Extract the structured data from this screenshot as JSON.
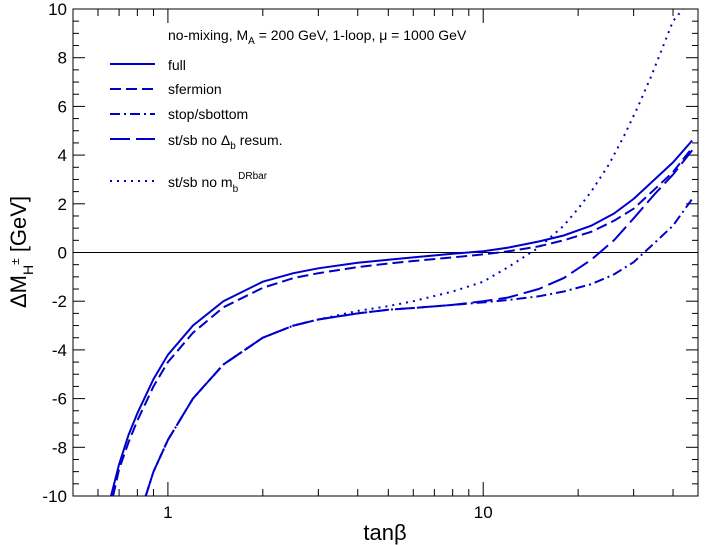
{
  "chart_data": {
    "type": "line",
    "xscale": "log",
    "xlim": [
      0.5,
      48
    ],
    "ylim": [
      -10,
      10
    ],
    "x_tick_labels": [
      "1",
      "10"
    ],
    "y_tick_labels": [
      "-10",
      "-8",
      "-6",
      "-4",
      "-2",
      "0",
      "2",
      "4",
      "6",
      "8",
      "10"
    ],
    "x_ticks": [
      1,
      10
    ],
    "y_ticks": [
      -10,
      -8,
      -6,
      -4,
      -2,
      0,
      2,
      4,
      6,
      8,
      10
    ],
    "xlabel": "tanβ",
    "ylabel": {
      "base": "ΔM",
      "sub": "H",
      "sup": "±",
      "unit": " [GeV]"
    },
    "zero_line": true,
    "legend": {
      "title": {
        "part1": "no-mixing, M",
        "sub": "A",
        "part2": " = 200 GeV, 1-loop, μ = 1000 GeV"
      },
      "entries": [
        {
          "label": "full"
        },
        {
          "label": "sfermion"
        },
        {
          "label": "stop/sbottom"
        },
        {
          "part1": "st/sb no Δ",
          "sub": "b",
          "part2": " resum."
        },
        {
          "part1": "st/sb no m",
          "sub": "b",
          "sup": "DRbar"
        }
      ]
    },
    "series": [
      {
        "key": "full",
        "color": "#0000cc",
        "x": [
          0.66,
          0.7,
          0.75,
          0.8,
          0.9,
          1.0,
          1.2,
          1.5,
          2.0,
          2.5,
          3.0,
          4.0,
          5.0,
          6.0,
          8.0,
          10.0,
          12.0,
          15.0,
          18.0,
          22.0,
          26.0,
          30.0,
          35.0,
          40.0,
          46.0
        ],
        "y": [
          -10.0,
          -8.7,
          -7.5,
          -6.6,
          -5.2,
          -4.2,
          -3.0,
          -2.0,
          -1.2,
          -0.85,
          -0.65,
          -0.42,
          -0.3,
          -0.2,
          -0.05,
          0.05,
          0.2,
          0.45,
          0.7,
          1.1,
          1.6,
          2.2,
          3.0,
          3.7,
          4.6
        ]
      },
      {
        "key": "sfermion",
        "color": "#0000cc",
        "x": [
          0.67,
          0.7,
          0.75,
          0.8,
          0.9,
          1.0,
          1.2,
          1.5,
          2.0,
          2.5,
          3.0,
          4.0,
          5.0,
          6.0,
          8.0,
          10.0,
          12.0,
          15.0,
          18.0,
          22.0,
          26.0,
          30.0,
          35.0,
          40.0,
          46.0
        ],
        "y": [
          -10.0,
          -8.9,
          -7.8,
          -6.9,
          -5.5,
          -4.5,
          -3.3,
          -2.25,
          -1.45,
          -1.05,
          -0.85,
          -0.6,
          -0.45,
          -0.35,
          -0.2,
          -0.08,
          0.05,
          0.25,
          0.5,
          0.85,
          1.3,
          1.8,
          2.6,
          3.3,
          4.3
        ]
      },
      {
        "key": "stopsbottom",
        "color": "#0000cc",
        "x": [
          0.85,
          0.9,
          1.0,
          1.2,
          1.5,
          2.0,
          2.5,
          3.0,
          4.0,
          5.0,
          6.0,
          8.0,
          10.0,
          12.0,
          15.0,
          18.0,
          22.0,
          26.0,
          30.0,
          35.0,
          40.0,
          46.0
        ],
        "y": [
          -10.0,
          -9.0,
          -7.7,
          -6.0,
          -4.6,
          -3.5,
          -3.0,
          -2.75,
          -2.5,
          -2.35,
          -2.28,
          -2.15,
          -2.05,
          -1.95,
          -1.8,
          -1.6,
          -1.3,
          -0.9,
          -0.4,
          0.4,
          1.1,
          2.2
        ]
      },
      {
        "key": "nodb",
        "color": "#0000cc",
        "x": [
          0.85,
          0.9,
          1.0,
          1.2,
          1.5,
          2.0,
          2.5,
          3.0,
          4.0,
          5.0,
          6.0,
          8.0,
          10.0,
          12.0,
          15.0,
          18.0,
          22.0,
          26.0,
          30.0,
          35.0,
          40.0,
          46.0
        ],
        "y": [
          -10.0,
          -9.0,
          -7.7,
          -6.0,
          -4.6,
          -3.5,
          -3.0,
          -2.75,
          -2.5,
          -2.35,
          -2.28,
          -2.15,
          -2.0,
          -1.85,
          -1.5,
          -1.05,
          -0.3,
          0.5,
          1.4,
          2.4,
          3.2,
          4.2
        ]
      },
      {
        "key": "nomb",
        "color": "#0000cc",
        "x": [
          0.85,
          0.9,
          1.0,
          1.2,
          1.5,
          2.0,
          2.5,
          3.0,
          4.0,
          5.0,
          6.0,
          8.0,
          10.0,
          12.0,
          15.0,
          18.0,
          20.0,
          22.0,
          25.0,
          28.0,
          31.0,
          34.0,
          37.0,
          40.0,
          43.0
        ],
        "y": [
          -10.0,
          -9.0,
          -7.7,
          -6.0,
          -4.6,
          -3.5,
          -3.0,
          -2.75,
          -2.4,
          -2.2,
          -2.0,
          -1.6,
          -1.2,
          -0.6,
          0.2,
          1.1,
          1.8,
          2.5,
          3.6,
          4.8,
          6.0,
          7.2,
          8.4,
          9.5,
          10.0
        ]
      }
    ]
  }
}
